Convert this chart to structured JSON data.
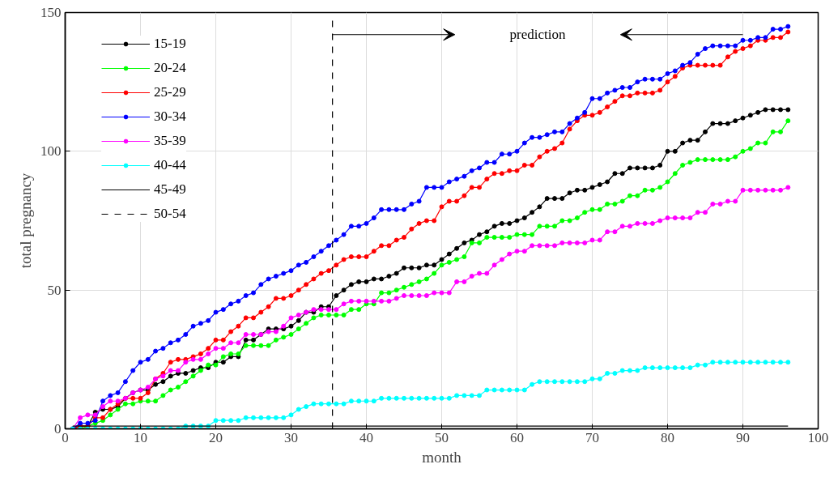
{
  "chart_data": {
    "type": "line",
    "xlabel": "month",
    "ylabel": "total pregnancy",
    "x": [
      1,
      2,
      3,
      4,
      5,
      6,
      7,
      8,
      9,
      10,
      11,
      12,
      13,
      14,
      15,
      16,
      17,
      18,
      19,
      20,
      21,
      22,
      23,
      24,
      25,
      26,
      27,
      28,
      29,
      30,
      31,
      32,
      33,
      34,
      35,
      36,
      37,
      38,
      39,
      40,
      41,
      42,
      43,
      44,
      45,
      46,
      47,
      48,
      49,
      50,
      51,
      52,
      53,
      54,
      55,
      56,
      57,
      58,
      59,
      60,
      61,
      62,
      63,
      64,
      65,
      66,
      67,
      68,
      69,
      70,
      71,
      72,
      73,
      74,
      75,
      76,
      77,
      78,
      79,
      80,
      81,
      82,
      83,
      84,
      85,
      86,
      87,
      88,
      89,
      90,
      91,
      92,
      93,
      94,
      95,
      96
    ],
    "series": [
      {
        "name": "15-19",
        "color": "#000000",
        "values": [
          0,
          1,
          1,
          6,
          7,
          7,
          8,
          11,
          13,
          14,
          14,
          16,
          17,
          19,
          20,
          20,
          21,
          22,
          22,
          24,
          24,
          26,
          26,
          32,
          32,
          34,
          36,
          36,
          36,
          37,
          39,
          42,
          42,
          44,
          44,
          48,
          50,
          52,
          53,
          53,
          54,
          54,
          55,
          56,
          58,
          58,
          58,
          59,
          59,
          61,
          63,
          65,
          67,
          68,
          70,
          71,
          73,
          74,
          74,
          75,
          76,
          78,
          80,
          83,
          83,
          83,
          85,
          86,
          86,
          87,
          88,
          89,
          92,
          92,
          94,
          94,
          94,
          94,
          95,
          100,
          100,
          103,
          104,
          104,
          107,
          110,
          110,
          110,
          111,
          112,
          113,
          114,
          115,
          115,
          115,
          115
        ]
      },
      {
        "name": "20-24",
        "color": "#00ff00",
        "values": [
          0,
          0,
          1,
          2,
          3,
          5,
          7,
          9,
          9,
          10,
          10,
          10,
          12,
          14,
          15,
          17,
          19,
          21,
          23,
          23,
          26,
          27,
          27,
          30,
          30,
          30,
          30,
          32,
          33,
          34,
          36,
          38,
          40,
          41,
          41,
          41,
          41,
          43,
          43,
          45,
          45,
          49,
          49,
          50,
          51,
          52,
          53,
          54,
          56,
          59,
          60,
          61,
          62,
          67,
          67,
          69,
          69,
          69,
          69,
          70,
          70,
          70,
          73,
          73,
          73,
          75,
          75,
          76,
          78,
          79,
          79,
          81,
          81,
          82,
          84,
          84,
          86,
          86,
          87,
          89,
          92,
          95,
          96,
          97,
          97,
          97,
          97,
          97,
          98,
          100,
          101,
          103,
          103,
          107,
          107,
          111
        ]
      },
      {
        "name": "25-29",
        "color": "#ff0000",
        "values": [
          0,
          1,
          1,
          4,
          4,
          7,
          9,
          11,
          11,
          11,
          13,
          18,
          20,
          24,
          25,
          25,
          26,
          27,
          29,
          32,
          32,
          35,
          37,
          40,
          40,
          42,
          44,
          47,
          47,
          48,
          50,
          52,
          54,
          56,
          57,
          59,
          61,
          62,
          62,
          62,
          64,
          66,
          66,
          68,
          69,
          72,
          74,
          75,
          75,
          80,
          82,
          82,
          84,
          87,
          87,
          90,
          92,
          92,
          93,
          93,
          95,
          95,
          98,
          100,
          101,
          103,
          108,
          111,
          113,
          113,
          114,
          116,
          118,
          120,
          120,
          121,
          121,
          121,
          122,
          125,
          127,
          130,
          131,
          131,
          131,
          131,
          131,
          134,
          136,
          137,
          138,
          140,
          140,
          141,
          141,
          143
        ]
      },
      {
        "name": "30-34",
        "color": "#0000ff",
        "values": [
          0,
          2,
          2,
          3,
          10,
          12,
          13,
          17,
          21,
          24,
          25,
          28,
          29,
          31,
          32,
          34,
          37,
          38,
          39,
          42,
          43,
          45,
          46,
          48,
          49,
          52,
          54,
          55,
          56,
          57,
          59,
          60,
          62,
          64,
          66,
          68,
          70,
          73,
          73,
          74,
          76,
          79,
          79,
          79,
          79,
          81,
          82,
          87,
          87,
          87,
          89,
          90,
          91,
          93,
          94,
          96,
          96,
          99,
          99,
          100,
          103,
          105,
          105,
          106,
          107,
          107,
          110,
          112,
          114,
          119,
          119,
          121,
          122,
          123,
          123,
          125,
          126,
          126,
          126,
          128,
          129,
          131,
          132,
          135,
          137,
          138,
          138,
          138,
          138,
          140,
          140,
          141,
          141,
          144,
          144,
          145
        ]
      },
      {
        "name": "35-39",
        "color": "#ff00ff",
        "values": [
          0,
          4,
          5,
          5,
          8,
          10,
          10,
          11,
          13,
          14,
          15,
          18,
          19,
          21,
          21,
          24,
          25,
          25,
          27,
          29,
          29,
          31,
          31,
          34,
          34,
          34,
          35,
          35,
          37,
          40,
          41,
          42,
          43,
          43,
          43,
          43,
          45,
          46,
          46,
          46,
          46,
          46,
          46,
          47,
          48,
          48,
          48,
          48,
          49,
          49,
          49,
          53,
          53,
          55,
          56,
          56,
          59,
          61,
          63,
          64,
          64,
          66,
          66,
          66,
          66,
          67,
          67,
          67,
          67,
          68,
          68,
          71,
          71,
          73,
          73,
          74,
          74,
          74,
          75,
          76,
          76,
          76,
          76,
          78,
          78,
          81,
          81,
          82,
          82,
          86,
          86,
          86,
          86,
          86,
          86,
          87
        ]
      },
      {
        "name": "40-44",
        "color": "#00ffff",
        "values": [
          0,
          0,
          0,
          0,
          0,
          0,
          0,
          0,
          0,
          0,
          0,
          0,
          0,
          0,
          0,
          1,
          1,
          1,
          1,
          3,
          3,
          3,
          3,
          4,
          4,
          4,
          4,
          4,
          4,
          5,
          7,
          8,
          9,
          9,
          9,
          9,
          9,
          10,
          10,
          10,
          10,
          11,
          11,
          11,
          11,
          11,
          11,
          11,
          11,
          11,
          11,
          12,
          12,
          12,
          12,
          14,
          14,
          14,
          14,
          14,
          14,
          16,
          17,
          17,
          17,
          17,
          17,
          17,
          17,
          18,
          18,
          20,
          20,
          21,
          21,
          21,
          22,
          22,
          22,
          22,
          22,
          22,
          22,
          23,
          23,
          24,
          24,
          24,
          24,
          24,
          24,
          24,
          24,
          24,
          24,
          24
        ]
      },
      {
        "name": "45-49",
        "color": "#000000",
        "x": [
          1,
          96
        ],
        "values": [
          1,
          1
        ],
        "marker": "none"
      },
      {
        "name": "50-54",
        "color": "#000000",
        "x": [
          35.5,
          35.5
        ],
        "values": [
          0,
          148
        ],
        "marker": "none",
        "line_style": "dashed"
      }
    ],
    "xlim": [
      0,
      100
    ],
    "ylim": [
      0,
      150
    ],
    "xticks": [
      0,
      10,
      20,
      30,
      40,
      50,
      60,
      70,
      80,
      90,
      100
    ],
    "yticks": [
      0,
      50,
      100,
      150
    ],
    "annotations": [
      "prediction"
    ],
    "grid": true,
    "legend": "top left",
    "marker": "circle",
    "line_style": "solid"
  }
}
